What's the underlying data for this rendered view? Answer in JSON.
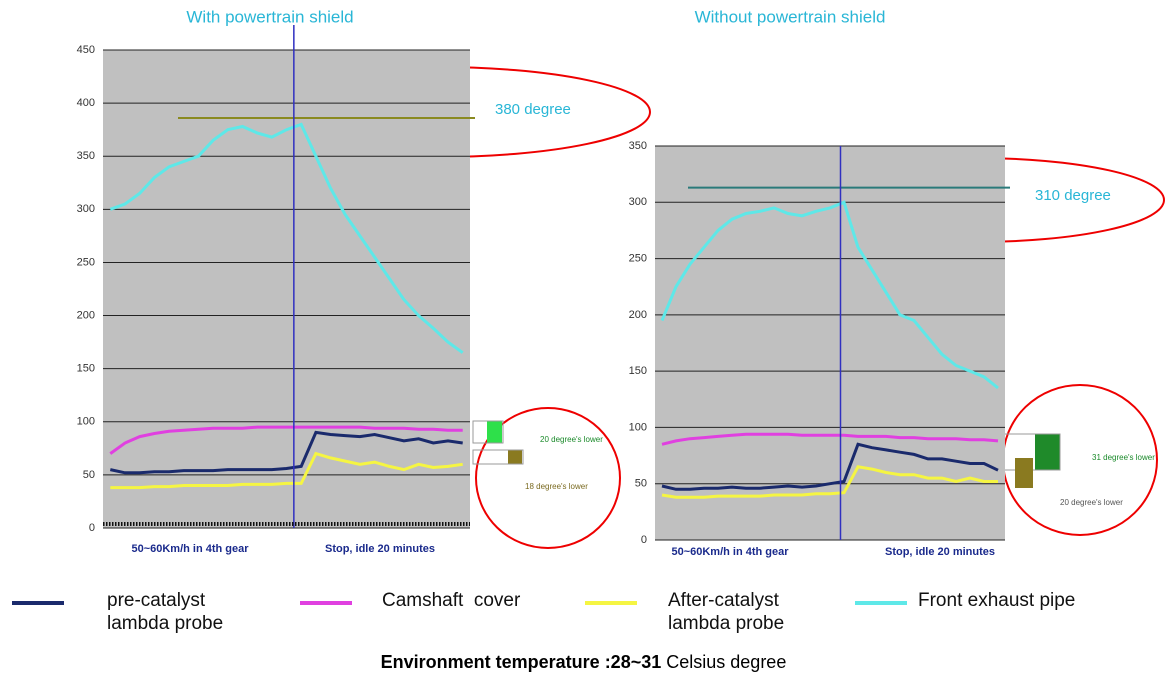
{
  "chart_data": [
    {
      "type": "line",
      "title": "With powertrain shield",
      "categories": [
        null,
        null,
        null,
        null,
        null,
        null,
        null,
        null,
        null,
        null,
        null,
        null,
        null,
        null,
        null,
        null,
        null,
        null,
        null,
        null,
        null,
        null,
        null,
        null,
        null
      ],
      "ylim": [
        0,
        450
      ],
      "yticks": [
        0,
        50,
        100,
        150,
        200,
        250,
        300,
        350,
        400,
        450
      ],
      "grid": true,
      "reference_value": 386,
      "annotations": [
        "380 degree",
        "20 degree's lower",
        "18 degree's lower"
      ],
      "x_region_labels": [
        "50~60Km/h in 4th gear",
        "Stop, idle 20 minutes"
      ],
      "series": [
        {
          "name": "pre-catalyst lambda probe",
          "color": "#1a2a6c",
          "values": [
            55,
            52,
            52,
            53,
            53,
            54,
            54,
            54,
            55,
            55,
            55,
            55,
            56,
            58,
            90,
            88,
            87,
            86,
            88,
            85,
            82,
            84,
            80,
            82,
            80
          ]
        },
        {
          "name": "Camshaft  cover",
          "color": "#e040e0",
          "values": [
            70,
            80,
            86,
            89,
            91,
            92,
            93,
            94,
            94,
            94,
            95,
            95,
            95,
            95,
            95,
            95,
            95,
            95,
            94,
            94,
            94,
            93,
            93,
            92,
            92
          ]
        },
        {
          "name": "After-catalyst lambda probe",
          "color": "#f5f542",
          "values": [
            38,
            38,
            38,
            39,
            39,
            40,
            40,
            40,
            40,
            41,
            41,
            41,
            42,
            42,
            70,
            66,
            63,
            60,
            62,
            58,
            55,
            60,
            57,
            58,
            60
          ]
        },
        {
          "name": "Front exhaust pipe",
          "color": "#5ee8e8",
          "values": [
            300,
            305,
            315,
            330,
            340,
            345,
            350,
            365,
            375,
            378,
            372,
            368,
            375,
            380,
            350,
            320,
            295,
            275,
            255,
            235,
            215,
            200,
            188,
            175,
            165
          ]
        }
      ]
    },
    {
      "type": "line",
      "title": "Without powertrain shield",
      "categories": [
        null,
        null,
        null,
        null,
        null,
        null,
        null,
        null,
        null,
        null,
        null,
        null,
        null,
        null,
        null,
        null,
        null,
        null,
        null,
        null,
        null,
        null,
        null,
        null,
        null
      ],
      "ylim": [
        0,
        350
      ],
      "yticks": [
        0,
        50,
        100,
        150,
        200,
        250,
        300,
        350
      ],
      "grid": true,
      "reference_value": 313,
      "annotations": [
        "310 degree",
        "31 degree's lower",
        "20 degree's lower"
      ],
      "x_region_labels": [
        "50~60Km/h in 4th gear",
        "Stop, idle 20 minutes"
      ],
      "series": [
        {
          "name": "pre-catalyst lambda probe",
          "color": "#1a2a6c",
          "values": [
            48,
            45,
            45,
            46,
            46,
            47,
            46,
            46,
            47,
            48,
            47,
            48,
            50,
            52,
            85,
            82,
            80,
            78,
            76,
            72,
            72,
            70,
            68,
            68,
            62
          ]
        },
        {
          "name": "Camshaft  cover",
          "color": "#e040e0",
          "values": [
            85,
            88,
            90,
            91,
            92,
            93,
            94,
            94,
            94,
            94,
            93,
            93,
            93,
            93,
            92,
            92,
            92,
            91,
            91,
            90,
            90,
            90,
            89,
            89,
            88
          ]
        },
        {
          "name": "After-catalyst lambda probe",
          "color": "#f5f542",
          "values": [
            40,
            38,
            38,
            38,
            39,
            39,
            39,
            39,
            40,
            40,
            40,
            41,
            41,
            42,
            65,
            63,
            60,
            58,
            58,
            55,
            55,
            52,
            55,
            52,
            52
          ]
        },
        {
          "name": "Front exhaust pipe",
          "color": "#5ee8e8",
          "values": [
            195,
            225,
            245,
            260,
            275,
            285,
            290,
            292,
            295,
            290,
            288,
            292,
            295,
            300,
            260,
            240,
            220,
            200,
            195,
            180,
            165,
            155,
            150,
            145,
            135
          ]
        }
      ]
    }
  ],
  "caption": {
    "bold": "Environment temperature :28~31",
    "rest": "Celsius degree"
  }
}
